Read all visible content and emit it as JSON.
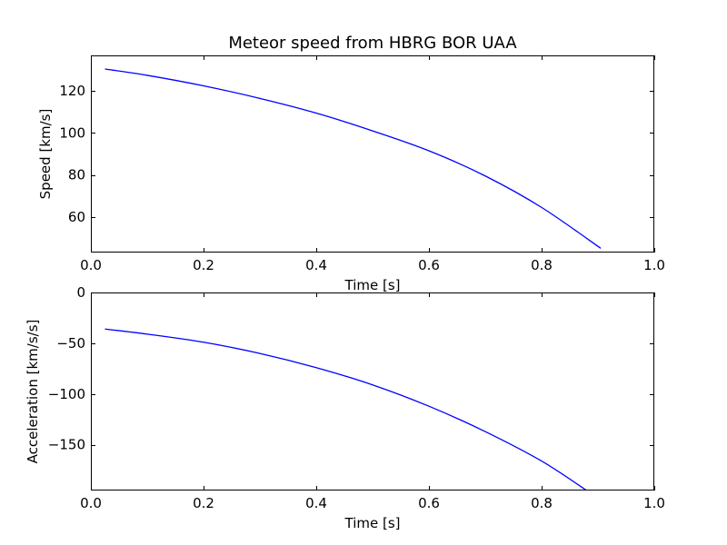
{
  "chart_data": [
    {
      "type": "line",
      "title": "Meteor speed from  HBRG BOR UAA",
      "xlabel": "Time [s]",
      "ylabel": "Speed [km/s]",
      "xlim": [
        0.0,
        1.0
      ],
      "ylim": [
        43,
        137
      ],
      "xticks": [
        "0.0",
        "0.2",
        "0.4",
        "0.6",
        "0.8",
        "1.0"
      ],
      "yticks": [
        "60",
        "80",
        "100",
        "120"
      ],
      "color": "#0000ff",
      "grid": false,
      "series": [
        {
          "x": [
            0.025,
            0.1,
            0.2,
            0.3,
            0.4,
            0.5,
            0.6,
            0.7,
            0.8,
            0.905
          ],
          "y": [
            130.5,
            127.5,
            122.5,
            116.5,
            109.5,
            101.0,
            91.5,
            79.5,
            64.5,
            45.0
          ]
        }
      ]
    },
    {
      "type": "line",
      "title": "",
      "xlabel": "Time [s]",
      "ylabel": "Acceleration [km/s/s]",
      "xlim": [
        0.0,
        1.0
      ],
      "ylim": [
        -195,
        0
      ],
      "xticks": [
        "0.0",
        "0.2",
        "0.4",
        "0.6",
        "0.8",
        "1.0"
      ],
      "yticks": [
        "0",
        "−50",
        "−100",
        "−150"
      ],
      "color": "#0000ff",
      "grid": false,
      "series": [
        {
          "x": [
            0.025,
            0.1,
            0.2,
            0.3,
            0.4,
            0.5,
            0.6,
            0.7,
            0.8,
            0.88
          ],
          "y": [
            -36,
            -41,
            -49,
            -60,
            -74,
            -91,
            -112,
            -137,
            -166,
            -195
          ]
        }
      ]
    }
  ]
}
